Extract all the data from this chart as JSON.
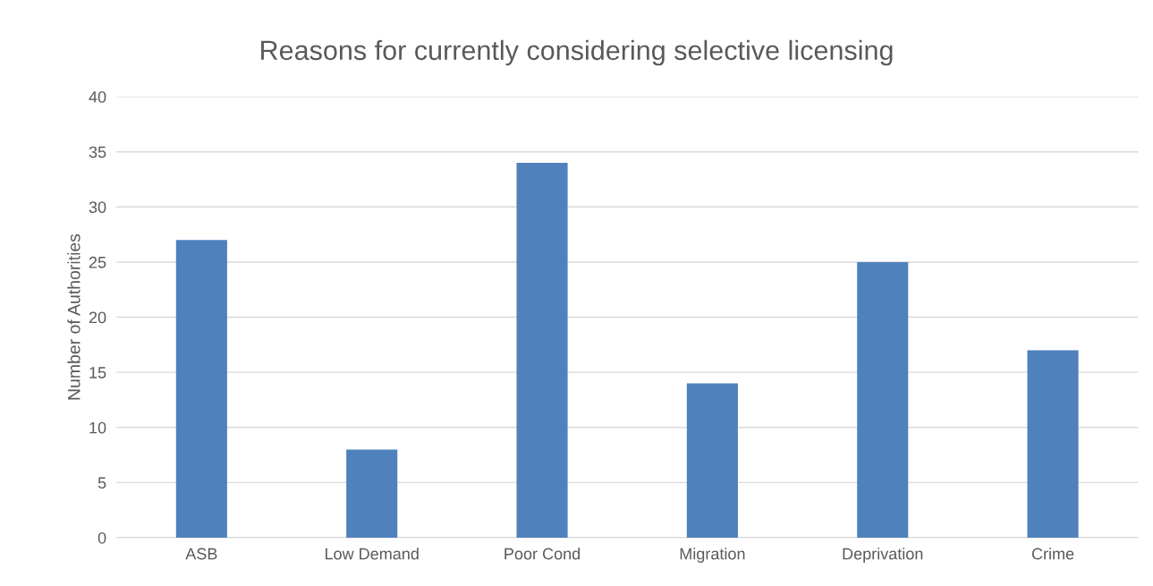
{
  "chart_data": {
    "type": "bar",
    "title": "Reasons for currently considering selective licensing",
    "ylabel": "Number of Authorities",
    "categories": [
      "ASB",
      "Low Demand",
      "Poor Cond",
      "Migration",
      "Deprivation",
      "Crime"
    ],
    "values": [
      27,
      8,
      34,
      14,
      25,
      17
    ],
    "color": "#4f81bd",
    "ylim": [
      0,
      40
    ],
    "yticks": [
      0,
      5,
      10,
      15,
      20,
      25,
      30,
      35,
      40
    ],
    "grid": "y",
    "legend": false
  }
}
